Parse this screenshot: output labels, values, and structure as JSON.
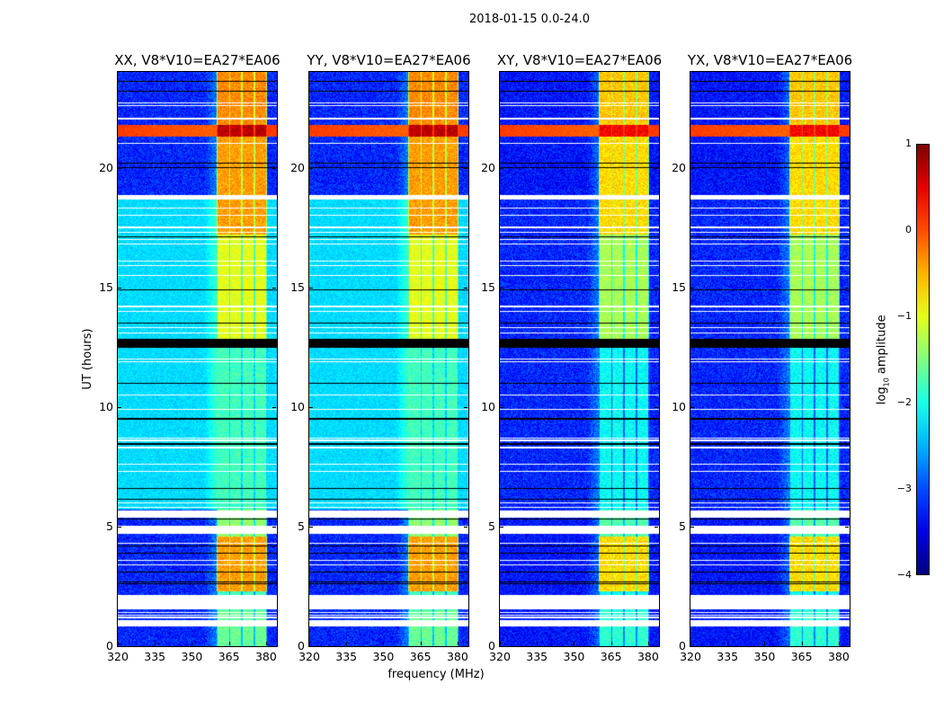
{
  "suptitle": "2018-01-15 0.0-24.0",
  "xlabel": "frequency (MHz)",
  "ylabel": "UT (hours)",
  "colorbar": {
    "label_prefix": "log",
    "label_sub": "10",
    "label_suffix": " amplitude",
    "range": [
      -4,
      1
    ],
    "ticks": [
      "1",
      "0",
      "−1",
      "−2",
      "−3",
      "−4"
    ],
    "tick_values": [
      1,
      0,
      -1,
      -2,
      -3,
      -4
    ],
    "colormap": "jet"
  },
  "chart_data": [
    {
      "type": "heatmap",
      "title": "XX, V8*V10=EA27*EA06",
      "background_level": {
        "mid": -2.3,
        "outer": -3.2
      },
      "column_boost": 0
    },
    {
      "type": "heatmap",
      "title": "YY, V8*V10=EA27*EA06",
      "background_level": {
        "mid": -2.3,
        "outer": -3.2
      },
      "column_boost": 0
    },
    {
      "type": "heatmap",
      "title": "XY, V8*V10=EA27*EA06",
      "background_level": {
        "mid": -3.2,
        "outer": -3.3
      },
      "column_boost": -0.3
    },
    {
      "type": "heatmap",
      "title": "YX, V8*V10=EA27*EA06",
      "background_level": {
        "mid": -3.2,
        "outer": -3.3
      },
      "column_boost": -0.3
    }
  ],
  "shared_axes": {
    "xlim": [
      320,
      384.4
    ],
    "ylim": [
      0,
      24
    ],
    "xticks": [
      320,
      335,
      350,
      365,
      380
    ],
    "xtick_labels": [
      "320",
      "335",
      "350",
      "365",
      "380"
    ],
    "yticks": [
      0,
      5,
      10,
      15,
      20
    ],
    "ytick_labels": [
      "0",
      "5",
      "10",
      "15",
      "20"
    ],
    "mid_background_hours": [
      5.7,
      18.8
    ],
    "bright_columns_mhz": [
      [
        360.5,
        365
      ],
      [
        365.5,
        370
      ],
      [
        370.5,
        375
      ],
      [
        375.5,
        380
      ]
    ],
    "column_levels": [
      {
        "hours": [
          0,
          1.5
        ],
        "level": -1.6
      },
      {
        "hours": [
          1.5,
          2.3
        ],
        "level": -1.8
      },
      {
        "hours": [
          2.3,
          4.6
        ],
        "level": -0.4
      },
      {
        "hours": [
          4.6,
          5.7
        ],
        "level": -1.4
      },
      {
        "hours": [
          5.7,
          12.5
        ],
        "level": -1.8
      },
      {
        "hours": [
          12.5,
          17.2
        ],
        "level": -1.0
      },
      {
        "hours": [
          17.2,
          21.3
        ],
        "level": -0.4
      },
      {
        "hours": [
          21.3,
          21.8
        ],
        "level": 0.7
      },
      {
        "hours": [
          21.8,
          24
        ],
        "level": -0.3
      }
    ],
    "rfi_band": {
      "hours": [
        21.3,
        21.8
      ],
      "level": 0.1
    },
    "flagged_bands_hours": [
      [
        22.0,
        22.1
      ],
      [
        18.66,
        18.85
      ],
      [
        5.37,
        5.67
      ],
      [
        4.69,
        5.03
      ],
      [
        1.54,
        2.14
      ],
      [
        0.83,
        1.09
      ]
    ],
    "blank_bands_hours": [
      [
        12.47,
        12.85
      ]
    ],
    "flagged_rows_hours": [
      22.6,
      22.7,
      21.0,
      18.3,
      18.0,
      17.5,
      17.3,
      17.0,
      16.8,
      16.1,
      15.9,
      15.5,
      14.2,
      14.0,
      13.3,
      13.1,
      12.0,
      11.9,
      10.5,
      9.9,
      8.7,
      8.6,
      8.3,
      7.6,
      7.3,
      6.0,
      5.8,
      4.3,
      3.6,
      3.4,
      1.4,
      1.3,
      1.2
    ],
    "dropout_rows_hours": [
      23.6,
      23.2,
      20.2,
      20.0,
      17.1,
      14.9,
      13.5,
      11.0,
      9.5,
      8.45,
      6.6,
      6.15,
      5.3,
      4.2,
      3.9,
      3.1,
      2.7,
      2.6
    ]
  }
}
